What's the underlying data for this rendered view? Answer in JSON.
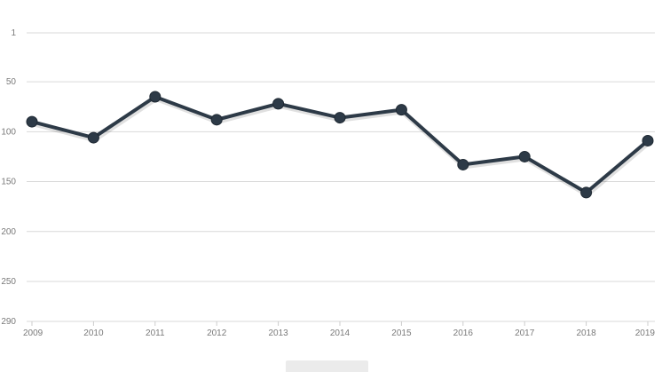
{
  "chart_data": {
    "type": "line",
    "title": "",
    "xlabel": "",
    "ylabel": "",
    "y_reversed": true,
    "ylim": [
      1,
      290
    ],
    "y_ticks": [
      1,
      50,
      100,
      150,
      200,
      250,
      290
    ],
    "grid": true,
    "categories": [
      "2009",
      "2010",
      "2011",
      "2012",
      "2013",
      "2014",
      "2015",
      "2016",
      "2017",
      "2018",
      "2019"
    ],
    "series": [
      {
        "values": [
          90,
          106,
          65,
          88,
          72,
          86,
          78,
          133,
          125,
          161,
          109
        ],
        "color": "#2d3a47"
      }
    ]
  }
}
